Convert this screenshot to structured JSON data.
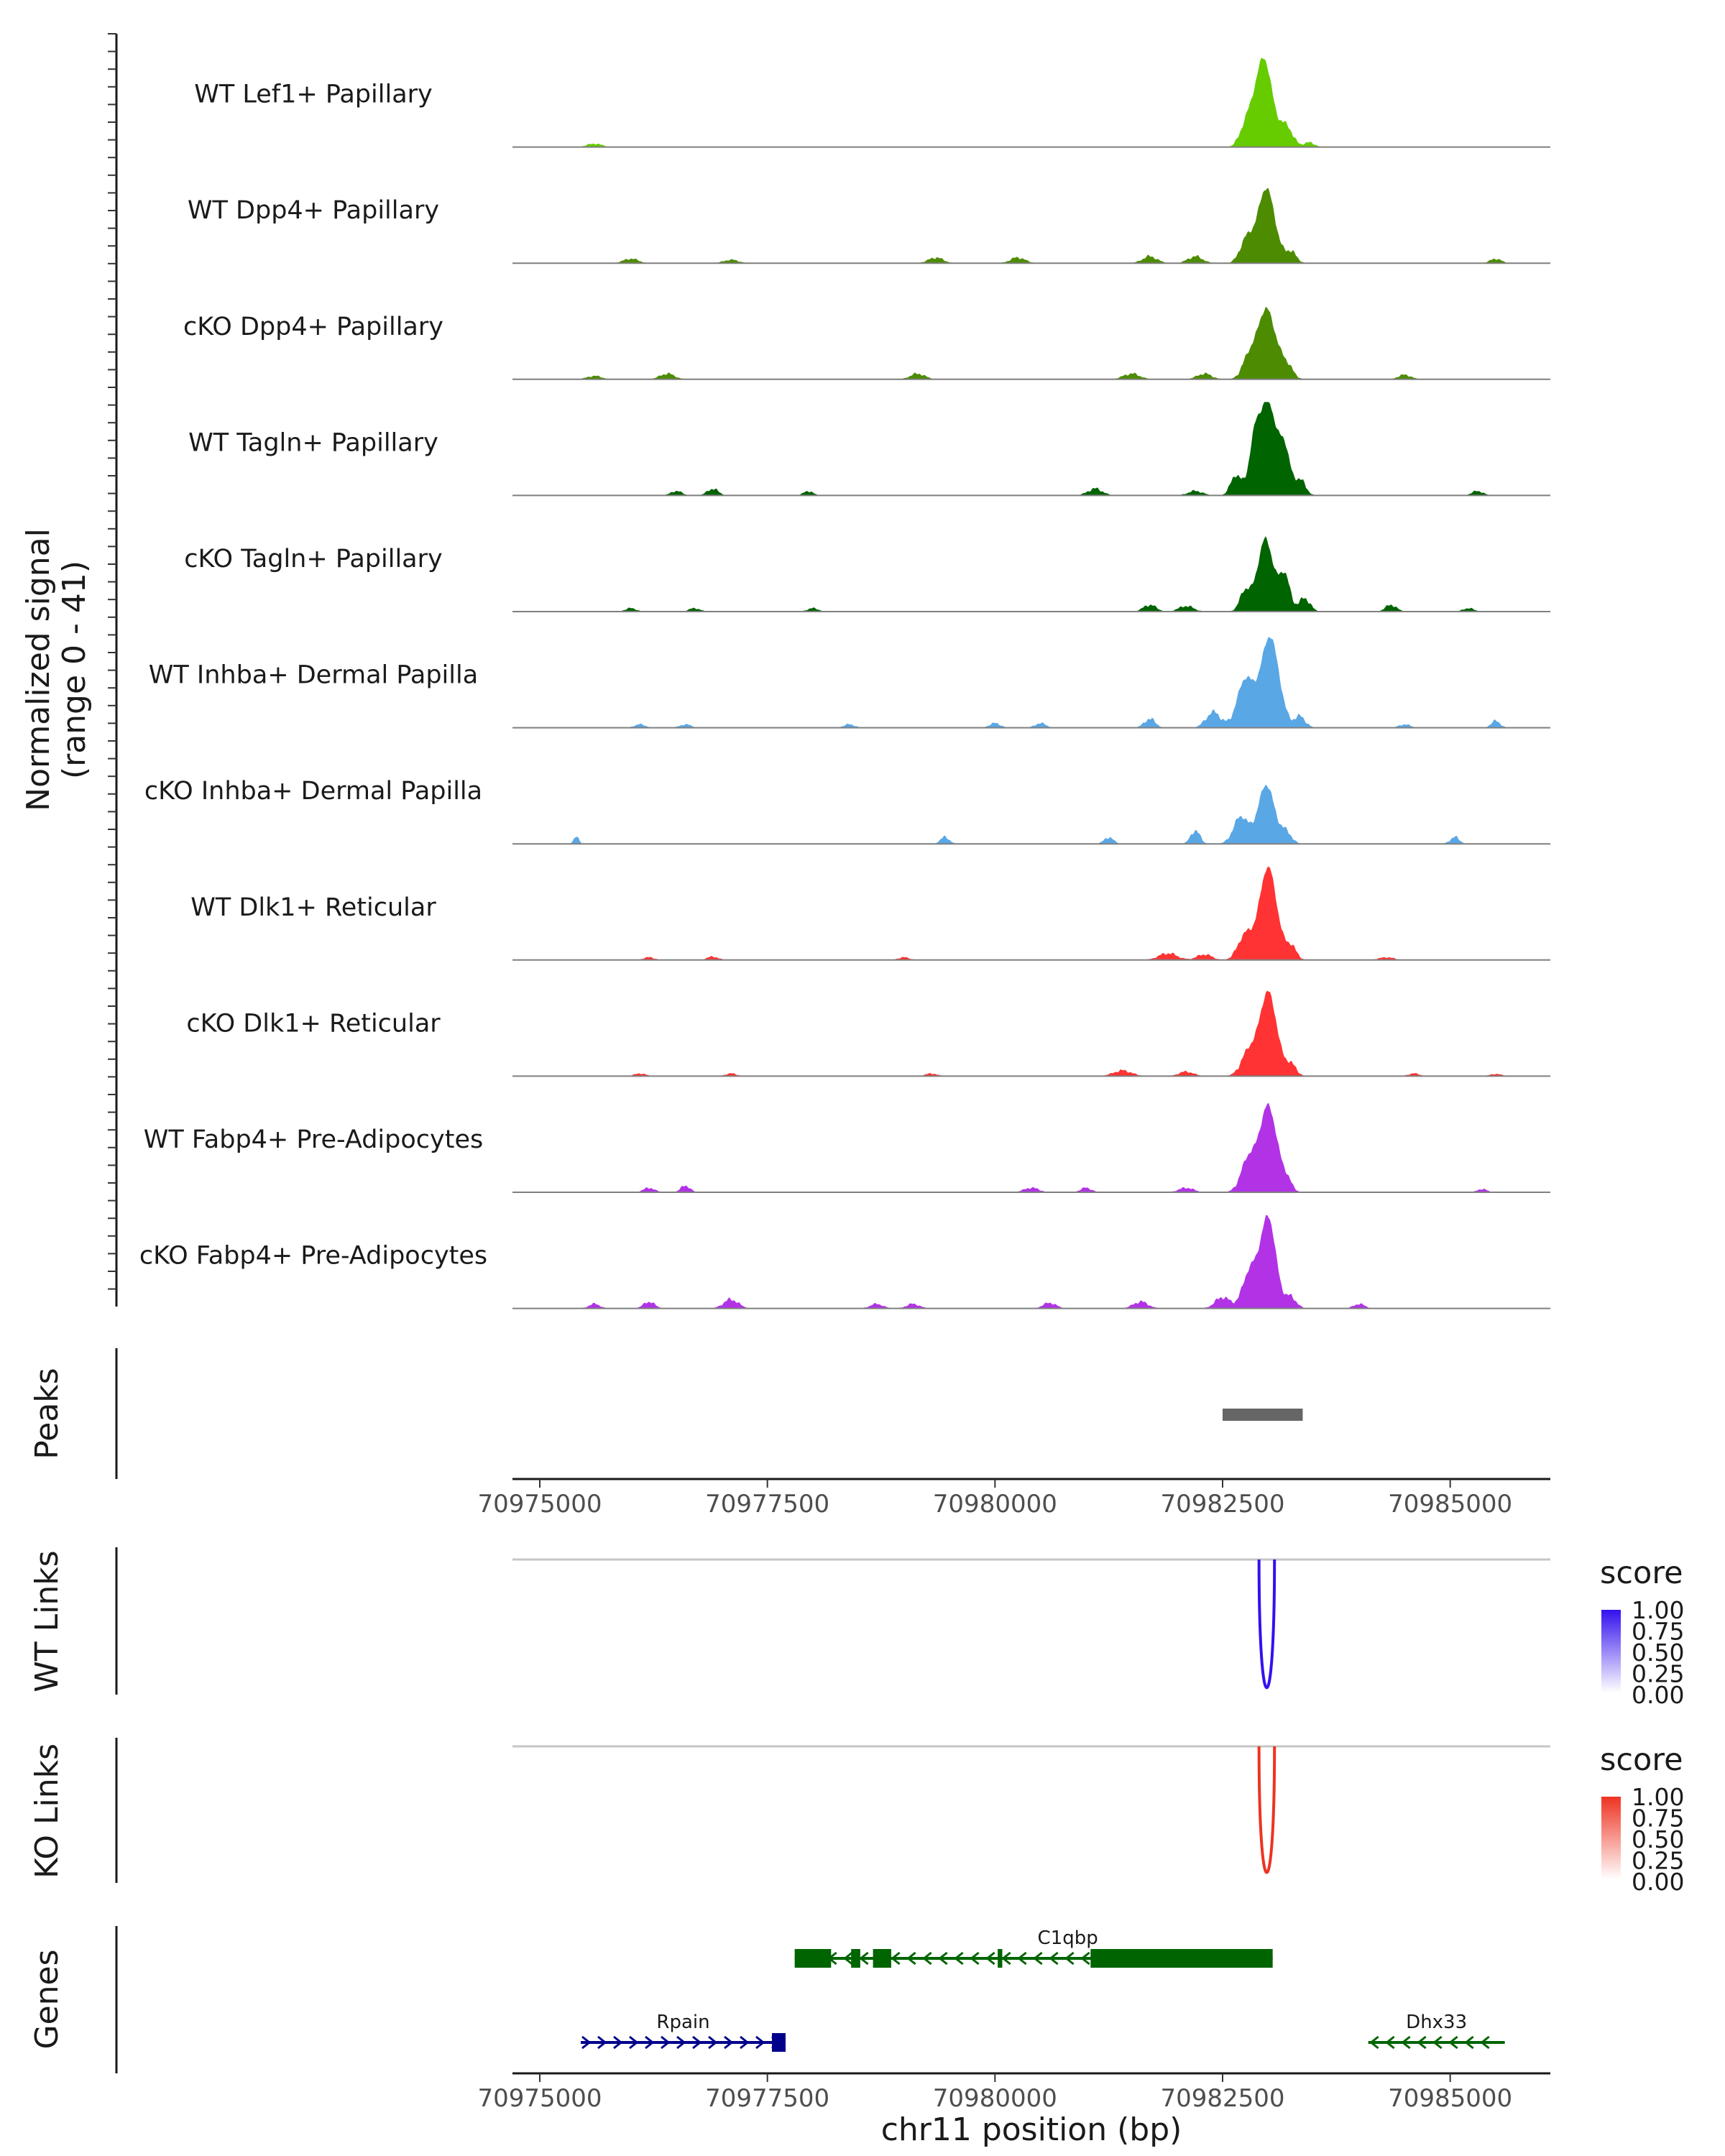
{
  "chart_data": {
    "type": "area",
    "chromosome": "chr11",
    "xlabel": "chr11 position (bp)",
    "xlim": [
      70974700,
      70986100
    ],
    "xticks": [
      70975000,
      70977500,
      70980000,
      70982500,
      70985000
    ],
    "xtick_labels": [
      "70975000",
      "70977500",
      "70980000",
      "70982500",
      "70985000"
    ],
    "coverage": {
      "ylabel": "Normalized signal",
      "ylabel_range": "(range 0 - 41)",
      "ylim": [
        0,
        41
      ],
      "tracks": [
        {
          "name": "WT Lef1+ Papillary",
          "color": "#66cc00",
          "peaks": [
            {
              "x": 70982950,
              "h": 39,
              "w": 95
            },
            {
              "x": 70982760,
              "h": 9,
              "w": 70
            },
            {
              "x": 70983200,
              "h": 9,
              "w": 70
            },
            {
              "x": 70983450,
              "h": 2,
              "w": 60
            },
            {
              "x": 70975600,
              "h": 1.5,
              "w": 80
            }
          ]
        },
        {
          "name": "WT Dpp4+ Papillary",
          "color": "#4d8c00",
          "peaks": [
            {
              "x": 70982980,
              "h": 33,
              "w": 95
            },
            {
              "x": 70982760,
              "h": 10,
              "w": 70
            },
            {
              "x": 70983250,
              "h": 5,
              "w": 60
            },
            {
              "x": 70981700,
              "h": 3,
              "w": 80
            },
            {
              "x": 70982200,
              "h": 3,
              "w": 80
            },
            {
              "x": 70979350,
              "h": 2.5,
              "w": 80
            },
            {
              "x": 70980250,
              "h": 2.5,
              "w": 80
            },
            {
              "x": 70985500,
              "h": 2,
              "w": 60
            },
            {
              "x": 70976000,
              "h": 2,
              "w": 80
            },
            {
              "x": 70977100,
              "h": 1.5,
              "w": 80
            }
          ]
        },
        {
          "name": "cKO Dpp4+ Papillary",
          "color": "#4d8c00",
          "peaks": [
            {
              "x": 70982980,
              "h": 31,
              "w": 100
            },
            {
              "x": 70982780,
              "h": 8,
              "w": 70
            },
            {
              "x": 70983200,
              "h": 6,
              "w": 70
            },
            {
              "x": 70981500,
              "h": 2.5,
              "w": 90
            },
            {
              "x": 70982300,
              "h": 2.5,
              "w": 80
            },
            {
              "x": 70979150,
              "h": 2.5,
              "w": 80
            },
            {
              "x": 70976400,
              "h": 2.5,
              "w": 80
            },
            {
              "x": 70984500,
              "h": 2,
              "w": 70
            },
            {
              "x": 70975600,
              "h": 1.5,
              "w": 80
            }
          ]
        },
        {
          "name": "WT Tagln+ Papillary",
          "color": "#006400",
          "peaks": [
            {
              "x": 70983000,
              "h": 41,
              "w": 85
            },
            {
              "x": 70982850,
              "h": 22,
              "w": 60
            },
            {
              "x": 70983180,
              "h": 20,
              "w": 60
            },
            {
              "x": 70982650,
              "h": 9,
              "w": 60
            },
            {
              "x": 70983350,
              "h": 7,
              "w": 60
            },
            {
              "x": 70981100,
              "h": 3,
              "w": 80
            },
            {
              "x": 70982200,
              "h": 2,
              "w": 80
            },
            {
              "x": 70976900,
              "h": 3,
              "w": 60
            },
            {
              "x": 70976500,
              "h": 2,
              "w": 60
            },
            {
              "x": 70977950,
              "h": 2,
              "w": 50
            },
            {
              "x": 70985300,
              "h": 2,
              "w": 60
            }
          ]
        },
        {
          "name": "cKO Tagln+ Papillary",
          "color": "#006400",
          "peaks": [
            {
              "x": 70982970,
              "h": 32,
              "w": 85
            },
            {
              "x": 70983180,
              "h": 16,
              "w": 60
            },
            {
              "x": 70982750,
              "h": 9,
              "w": 60
            },
            {
              "x": 70983400,
              "h": 6,
              "w": 60
            },
            {
              "x": 70981700,
              "h": 3,
              "w": 70
            },
            {
              "x": 70984350,
              "h": 3,
              "w": 60
            },
            {
              "x": 70982100,
              "h": 2.5,
              "w": 80
            },
            {
              "x": 70976000,
              "h": 1.5,
              "w": 60
            },
            {
              "x": 70976700,
              "h": 1.5,
              "w": 60
            },
            {
              "x": 70978000,
              "h": 1.5,
              "w": 60
            },
            {
              "x": 70985200,
              "h": 1.5,
              "w": 60
            }
          ]
        },
        {
          "name": "WT Inhba+ Dermal Papilla",
          "color": "#5aa7e6",
          "peaks": [
            {
              "x": 70983020,
              "h": 40,
              "w": 100
            },
            {
              "x": 70982750,
              "h": 21,
              "w": 90
            },
            {
              "x": 70982400,
              "h": 7,
              "w": 80
            },
            {
              "x": 70983350,
              "h": 5,
              "w": 60
            },
            {
              "x": 70981700,
              "h": 4,
              "w": 60
            },
            {
              "x": 70985500,
              "h": 3,
              "w": 50
            },
            {
              "x": 70980000,
              "h": 2,
              "w": 60
            },
            {
              "x": 70980500,
              "h": 2,
              "w": 60
            },
            {
              "x": 70976100,
              "h": 1.5,
              "w": 60
            },
            {
              "x": 70976600,
              "h": 1.5,
              "w": 60
            },
            {
              "x": 70978400,
              "h": 1.5,
              "w": 60
            },
            {
              "x": 70984500,
              "h": 1.5,
              "w": 60
            }
          ]
        },
        {
          "name": "cKO Inhba+ Dermal Papilla",
          "color": "#5aa7e6",
          "peaks": [
            {
              "x": 70982980,
              "h": 26,
              "w": 90
            },
            {
              "x": 70982700,
              "h": 12,
              "w": 80
            },
            {
              "x": 70983200,
              "h": 5,
              "w": 60
            },
            {
              "x": 70982200,
              "h": 6,
              "w": 50
            },
            {
              "x": 70975400,
              "h": 3,
              "w": 30
            },
            {
              "x": 70979450,
              "h": 3,
              "w": 50
            },
            {
              "x": 70981250,
              "h": 3,
              "w": 50
            },
            {
              "x": 70985050,
              "h": 3,
              "w": 50
            }
          ]
        },
        {
          "name": "WT Dlk1+ Reticular",
          "color": "#ff3333",
          "peaks": [
            {
              "x": 70983000,
              "h": 41,
              "w": 95
            },
            {
              "x": 70982750,
              "h": 11,
              "w": 80
            },
            {
              "x": 70983250,
              "h": 6,
              "w": 60
            },
            {
              "x": 70981900,
              "h": 3,
              "w": 100
            },
            {
              "x": 70982300,
              "h": 2.5,
              "w": 80
            },
            {
              "x": 70976900,
              "h": 1.5,
              "w": 60
            },
            {
              "x": 70976200,
              "h": 1.2,
              "w": 60
            },
            {
              "x": 70979000,
              "h": 1.2,
              "w": 60
            },
            {
              "x": 70984300,
              "h": 1.2,
              "w": 80
            }
          ]
        },
        {
          "name": "cKO Dlk1+ Reticular",
          "color": "#ff3333",
          "peaks": [
            {
              "x": 70983000,
              "h": 37,
              "w": 95
            },
            {
              "x": 70982780,
              "h": 10,
              "w": 80
            },
            {
              "x": 70983250,
              "h": 5,
              "w": 60
            },
            {
              "x": 70981400,
              "h": 2.5,
              "w": 100
            },
            {
              "x": 70982100,
              "h": 2,
              "w": 80
            },
            {
              "x": 70977100,
              "h": 1.2,
              "w": 60
            },
            {
              "x": 70976100,
              "h": 1.2,
              "w": 60
            },
            {
              "x": 70979300,
              "h": 1.2,
              "w": 60
            },
            {
              "x": 70984600,
              "h": 1.2,
              "w": 60
            },
            {
              "x": 70985500,
              "h": 1,
              "w": 60
            }
          ]
        },
        {
          "name": "WT Fabp4+ Pre-Adipocytes",
          "color": "#b233e6",
          "peaks": [
            {
              "x": 70983000,
              "h": 38,
              "w": 95
            },
            {
              "x": 70982780,
              "h": 14,
              "w": 80
            },
            {
              "x": 70983200,
              "h": 5,
              "w": 60
            },
            {
              "x": 70976600,
              "h": 3,
              "w": 50
            },
            {
              "x": 70976200,
              "h": 2,
              "w": 60
            },
            {
              "x": 70980400,
              "h": 2,
              "w": 80
            },
            {
              "x": 70981000,
              "h": 2,
              "w": 60
            },
            {
              "x": 70982100,
              "h": 2,
              "w": 80
            },
            {
              "x": 70985350,
              "h": 1.5,
              "w": 50
            }
          ]
        },
        {
          "name": "cKO Fabp4+ Pre-Adipocytes",
          "color": "#b233e6",
          "peaks": [
            {
              "x": 70983000,
              "h": 40,
              "w": 85
            },
            {
              "x": 70982800,
              "h": 16,
              "w": 80
            },
            {
              "x": 70982500,
              "h": 5,
              "w": 80
            },
            {
              "x": 70983250,
              "h": 5,
              "w": 60
            },
            {
              "x": 70977100,
              "h": 4,
              "w": 80
            },
            {
              "x": 70976200,
              "h": 3,
              "w": 60
            },
            {
              "x": 70975600,
              "h": 2,
              "w": 60
            },
            {
              "x": 70978700,
              "h": 2,
              "w": 70
            },
            {
              "x": 70979100,
              "h": 2,
              "w": 70
            },
            {
              "x": 70980600,
              "h": 2.5,
              "w": 70
            },
            {
              "x": 70981600,
              "h": 3,
              "w": 80
            },
            {
              "x": 70984000,
              "h": 2,
              "w": 60
            }
          ]
        }
      ]
    },
    "peaks_track": {
      "label": "Peaks",
      "regions": [
        {
          "start": 70982500,
          "end": 70983380
        }
      ]
    },
    "links": [
      {
        "label": "WT Links",
        "legend_title": "score",
        "color": "#3311ee",
        "legend_ticks": [
          "1.00",
          "0.75",
          "0.50",
          "0.25",
          "0.00"
        ],
        "arcs": [
          {
            "start": 70982900,
            "end": 70983070,
            "score": 0.85
          }
        ]
      },
      {
        "label": "KO Links",
        "legend_title": "score",
        "color": "#ee3322",
        "legend_ticks": [
          "1.00",
          "0.75",
          "0.50",
          "0.25",
          "0.00"
        ],
        "arcs": [
          {
            "start": 70982900,
            "end": 70983070,
            "score": 0.85
          }
        ]
      }
    ],
    "genes": {
      "label": "Genes",
      "items": [
        {
          "name": "C1qbp",
          "strand": "-",
          "color": "#006400",
          "row": 0,
          "start": 70977800,
          "end": 70983050,
          "exons": [
            [
              70977800,
              70978200
            ],
            [
              70978420,
              70978520
            ],
            [
              70978660,
              70978860
            ],
            [
              70980030,
              70980080
            ],
            [
              70981050,
              70983050
            ]
          ]
        },
        {
          "name": "Rpain",
          "strand": "+",
          "color": "#00008b",
          "row": 1,
          "start": 70975450,
          "end": 70977700,
          "exons": [
            [
              70977550,
              70977700
            ]
          ]
        },
        {
          "name": "Dhx33",
          "strand": "-",
          "color": "#006400",
          "row": 1,
          "start": 70984100,
          "end": 70985600,
          "exons": []
        }
      ]
    }
  }
}
